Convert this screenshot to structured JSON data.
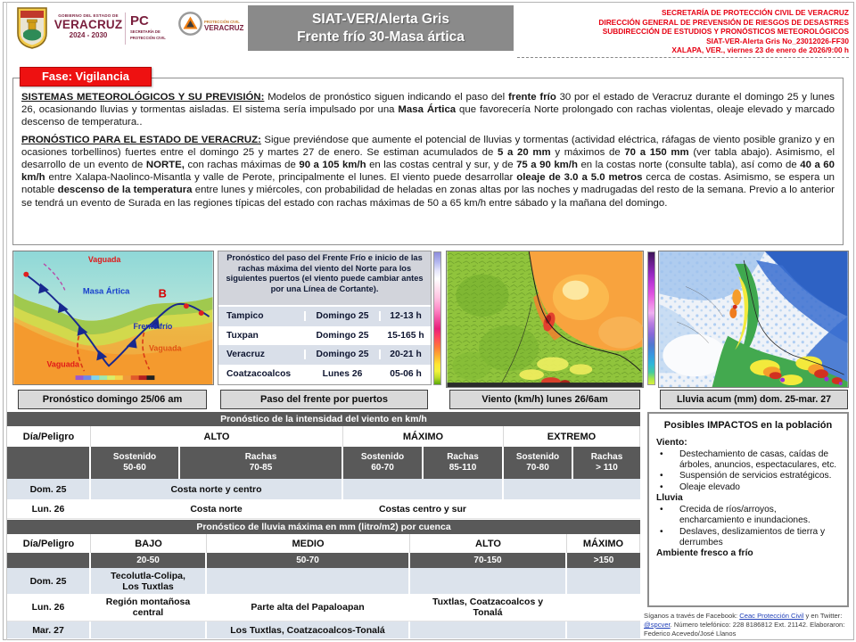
{
  "colors": {
    "banner_gray": "#8a8a8a",
    "alert_red": "#ee1111",
    "secretariat_red": "#e60012",
    "table_dark": "#595959",
    "row_light": "#dce3ec",
    "maroon": "#7a1f3d",
    "caption_bg": "#d9d9d9",
    "link_blue": "#1f3fb8"
  },
  "header": {
    "gov": {
      "line1": "GOBIERNO DEL ESTADO DE",
      "line2": "VERACRUZ",
      "line3": "2024 - 2030"
    },
    "pc": {
      "abbr": "PC",
      "sub1": "SECRETARÍA DE",
      "sub2": "PROTECCIÓN CIVIL"
    },
    "pcver": {
      "line1": "PROTECCIÓN CIVIL",
      "line2": "VERACRUZ"
    },
    "banner": {
      "line1": "SIAT-VER/Alerta Gris",
      "line2": "Frente frío 30-Masa ártica"
    },
    "right_lines": [
      "SECRETARÍA DE PROTECCIÓN CIVIL DE VERACRUZ",
      "DIRECCIÓN GENERAL DE PREVENSIÓN DE RIESGOS DE DESASTRES",
      "SUBDIRECCIÓN DE ESTUDIOS Y PRONÓSTICOS METEOROLÓGICOS",
      "SIAT-VER-Alerta Gris No_23012026-FF30",
      "XALAPA, VER., viernes 23 de enero de 2026/9:00 h"
    ]
  },
  "phase_badge": "Fase: Vigilancia",
  "paragraphs": {
    "p1": [
      {
        "t": "SISTEMAS METEOROLÓGICOS Y SU PREVISIÓN:",
        "b": true,
        "u": true
      },
      {
        "t": " Modelos de pronóstico siguen indicando el paso del "
      },
      {
        "t": "frente frío",
        "b": true
      },
      {
        "t": " 30 por el estado de Veracruz durante el domingo 25 y lunes 26, ocasionando lluvias y tormentas aisladas. El sistema sería impulsado por una "
      },
      {
        "t": "Masa Ártica",
        "b": true
      },
      {
        "t": " que favorecería Norte prolongado con rachas violentas, oleaje elevado y marcado descenso de temperatura.."
      }
    ],
    "p2": [
      {
        "t": "PRONÓSTICO PARA EL ESTADO DE VERACRUZ:",
        "b": true,
        "u": true
      },
      {
        "t": " Sigue previéndose que aumente el potencial de lluvias y tormentas (actividad eléctrica, ráfagas de viento posible granizo y en ocasiones torbellinos) fuertes entre el domingo 25 y martes 27 de enero. Se estiman acumulados de "
      },
      {
        "t": "5 a 20 mm",
        "b": true
      },
      {
        "t": " y máximos de "
      },
      {
        "t": "70 a 150 mm",
        "b": true
      },
      {
        "t": " (ver tabla abajo). Asimismo, el desarrollo de un evento de "
      },
      {
        "t": "NORTE,",
        "b": true
      },
      {
        "t": " con rachas máximas de "
      },
      {
        "t": "90 a 105 km/h",
        "b": true
      },
      {
        "t": " en las costas central y sur, y de "
      },
      {
        "t": "75 a 90 km/h",
        "b": true
      },
      {
        "t": " en la costas norte (consulte tabla), así como de "
      },
      {
        "t": "40 a 60 km/h",
        "b": true
      },
      {
        "t": " entre Xalapa-Naolinco-Misantla y valle de Perote, principalmente el lunes. El viento puede desarrollar "
      },
      {
        "t": "oleaje de 3.0 a 5.0 metros",
        "b": true
      },
      {
        "t": " cerca de costas. Asimismo, se espera un notable "
      },
      {
        "t": "descenso de la temperatura",
        "b": true
      },
      {
        "t": " entre lunes y miércoles, con probabilidad de heladas en zonas altas por las noches y madrugadas del resto de la semana. Previo a lo anterior se tendrá un evento de Surada en las regiones típicas del estado con rachas máximas de 50 a 65 km/h entre sábado y la mañana del domingo."
      }
    ]
  },
  "map1": {
    "caption": "Pronóstico domingo 25/06 am",
    "labels": {
      "vaguada_top": "Vaguada",
      "masa_artica": "Masa Ártica",
      "b_symbol": "B",
      "frente_frio": "Frente frío",
      "vaguada_right": "Vaguada",
      "vaguada_left": "Vaguada"
    }
  },
  "puertos_table": {
    "title": "Pronóstico del paso del Frente Frío e inicio de las rachas máxima  del viento del Norte para los siguientes puertos (el viento puede cambiar antes por una Línea de Cortante).",
    "caption": "Paso del frente por puertos",
    "rows": [
      {
        "port": "Tampico",
        "day": "Domingo 25",
        "time": "12-13 h"
      },
      {
        "port": "Tuxpan",
        "day": "Domingo 25",
        "time": "15-165 h"
      },
      {
        "port": "Veracruz",
        "day": "Domingo 25",
        "time": "20-21 h"
      },
      {
        "port": "Coatzacoalcos",
        "day": "Lunes 26",
        "time": "05-06 h"
      }
    ]
  },
  "wind_map": {
    "caption": "Viento (km/h) lunes 26/6am"
  },
  "rain_map": {
    "caption": "Lluvia acum (mm) dom. 25-mar. 27"
  },
  "wind_table": {
    "title": "Pronóstico de la intensidad del viento en km/h",
    "header": {
      "c0": "Día/Peligro",
      "alto": "ALTO",
      "maximo": "MÁXIMO",
      "extremo": "EXTREMO"
    },
    "subheader": {
      "s1": "Sostenido\n50-60",
      "s2": "Rachas\n70-85",
      "s3": "Sostenido\n60-70",
      "s4": "Rachas\n85-110",
      "s5": "Sostenido\n70-80",
      "s6": "Rachas\n> 110"
    },
    "rows": [
      {
        "day": "Dom. 25",
        "alto": "Costa norte y centro",
        "maximo": "",
        "extremo": ""
      },
      {
        "day": "Lun. 26",
        "alto": "Costa norte",
        "maximo": "Costas  centro y sur",
        "extremo": ""
      }
    ]
  },
  "rain_table": {
    "title": "Pronóstico de lluvia máxima en mm (litro/m2) por cuenca",
    "header": {
      "c0": "Día/Peligro",
      "bajo": "BAJO",
      "medio": "MEDIO",
      "alto": "ALTO",
      "maximo": "MÁXIMO"
    },
    "subheader": {
      "bajo": "20-50",
      "medio": "50-70",
      "alto": "70-150",
      "maximo": ">150"
    },
    "rows": [
      {
        "day": "Dom. 25",
        "bajo": "Tecolutla-Colipa,\nLos Tuxtlas",
        "medio": "",
        "alto": "",
        "maximo": ""
      },
      {
        "day": "Lun. 26",
        "bajo": "Región montañosa\ncentral",
        "medio": "Parte alta del Papaloapan",
        "alto": "Tuxtlas, Coatzacoalcos y\nTonalá",
        "maximo": ""
      },
      {
        "day": "Mar. 27",
        "bajo": "",
        "medio": "Los Tuxtlas, Coatzacoalcos-Tonalá",
        "alto": "",
        "maximo": ""
      }
    ]
  },
  "impacts": {
    "title": "Posibles IMPACTOS en la población",
    "sections": [
      {
        "heading": "Viento:",
        "bullets": [
          "Destechamiento de casas, caídas de árboles, anuncios, espectaculares, etc.",
          "Suspensión de servicios estratégicos.",
          "Oleaje elevado"
        ]
      },
      {
        "heading": "Lluvia",
        "bullets": [
          "Crecida de ríos/arroyos, encharcamiento e inundaciones.",
          "Deslaves, deslizamientos de tierra y derrumbes"
        ]
      },
      {
        "heading": "Ambiente fresco a frío",
        "bullets": []
      }
    ]
  },
  "footer": {
    "segments": [
      {
        "t": "Síganos a través de Facebook: "
      },
      {
        "t": "Ceac Protección Civil",
        "link": true
      },
      {
        "t": " y en Twitter: "
      },
      {
        "t": "@spcver",
        "link": true
      },
      {
        "t": ". Número telefónico: 228 8186812 Ext. 21142. Elaboraron: Federico Acevedo/José Llanos"
      }
    ]
  }
}
